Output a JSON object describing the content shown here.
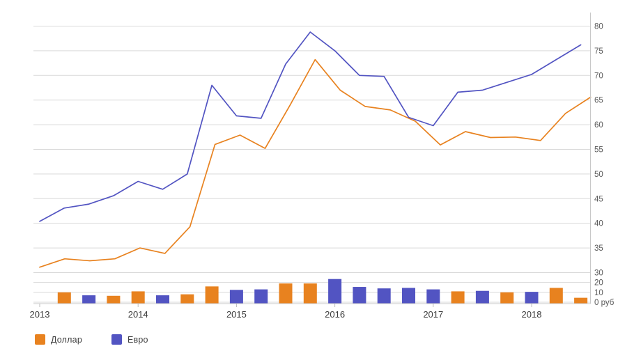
{
  "chart_data": {
    "type": "line",
    "title": "",
    "unit": "руб",
    "x_tick_labels": [
      "2013",
      "2014",
      "2015",
      "2016",
      "2017",
      "2018"
    ],
    "y_ticks": [
      {
        "label": "80",
        "value": 80
      },
      {
        "label": "75",
        "value": 75
      },
      {
        "label": "70",
        "value": 70
      },
      {
        "label": "65",
        "value": 65
      },
      {
        "label": "60",
        "value": 60
      },
      {
        "label": "55",
        "value": 55
      },
      {
        "label": "50",
        "value": 50
      },
      {
        "label": "45",
        "value": 45
      },
      {
        "label": "40",
        "value": 40
      },
      {
        "label": "35",
        "value": 35
      },
      {
        "label": "30",
        "value": 30
      },
      {
        "label": "20",
        "value": 20
      },
      {
        "label": "10",
        "value": 10
      },
      {
        "label": "0 руб",
        "value": 0
      }
    ],
    "y_axis_note": "linear 30-80 rub for lines, compressed 0-30 rub band at bottom for bars",
    "quarters": [
      "2013 Q1",
      "2013 Q2",
      "2013 Q3",
      "2013 Q4",
      "2014 Q1",
      "2014 Q2",
      "2014 Q3",
      "2014 Q4",
      "2015 Q1",
      "2015 Q2",
      "2015 Q3",
      "2015 Q4",
      "2016 Q1",
      "2016 Q2",
      "2016 Q3",
      "2016 Q4",
      "2017 Q1",
      "2017 Q2",
      "2017 Q3",
      "2017 Q4",
      "2018 Q1",
      "2018 Q2",
      "2018 Q3"
    ],
    "series": [
      {
        "name": "Доллар",
        "key": "dollar",
        "color": "#e8821f",
        "values": [
          31.1,
          32.8,
          32.4,
          32.8,
          35.0,
          33.9,
          39.3,
          56.0,
          57.9,
          55.2,
          64.0,
          73.2,
          67.0,
          63.7,
          63.0,
          60.7,
          55.9,
          58.6,
          57.4,
          57.5,
          56.8,
          62.3,
          65.6
        ]
      },
      {
        "name": "Евро",
        "key": "euro",
        "color": "#5254c2",
        "values": [
          40.4,
          43.1,
          43.9,
          45.6,
          48.5,
          46.9,
          50.0,
          68.0,
          61.8,
          61.3,
          72.3,
          78.8,
          75.0,
          70.0,
          69.8,
          61.5,
          59.8,
          66.6,
          67.0,
          68.6,
          70.2,
          73.2,
          76.2
        ]
      }
    ],
    "bars": {
      "description": "quarterly bars drawn on the compressed 0-30 rub band",
      "quarters": [
        "2013 Q2",
        "2013 Q3",
        "2013 Q4",
        "2014 Q1",
        "2014 Q2",
        "2014 Q3",
        "2014 Q4",
        "2015 Q1",
        "2015 Q2",
        "2015 Q3",
        "2015 Q4",
        "2016 Q1",
        "2016 Q2",
        "2016 Q3",
        "2016 Q4",
        "2017 Q1",
        "2017 Q2",
        "2017 Q3",
        "2017 Q4",
        "2018 Q1",
        "2018 Q2",
        "2018 Q3"
      ],
      "currencies": [
        "dollar",
        "euro",
        "dollar",
        "dollar",
        "euro",
        "dollar",
        "dollar",
        "euro",
        "euro",
        "dollar",
        "dollar",
        "euro",
        "euro",
        "euro",
        "euro",
        "euro",
        "dollar",
        "euro",
        "dollar",
        "euro",
        "dollar",
        "dollar"
      ],
      "values": [
        10,
        7,
        6.5,
        11,
        7,
        8,
        16,
        12.5,
        13,
        19,
        19,
        23.5,
        15.5,
        14,
        14.5,
        13,
        11,
        11.5,
        10,
        10.5,
        14.5,
        4.5
      ]
    },
    "legend": [
      {
        "label": "Доллар",
        "key": "dollar",
        "color": "#e8821f"
      },
      {
        "label": "Евро",
        "key": "euro",
        "color": "#5254c2"
      }
    ],
    "legend_position": "bottom-left",
    "grid": true
  },
  "colors": {
    "dollar": "#e8821f",
    "euro": "#5254c2",
    "gridline": "#d9d9d9",
    "axis_line": "#c8c8c8",
    "tick_mark": "#bcbcbc",
    "y_label_text": "#595959",
    "x_label_text": "#3b3b3b",
    "background": "#ffffff"
  }
}
